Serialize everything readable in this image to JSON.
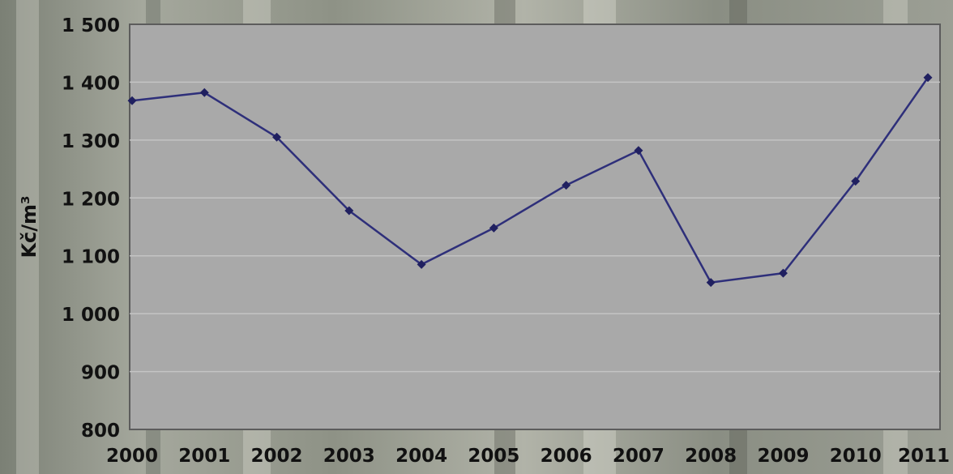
{
  "chart_data": {
    "type": "line",
    "title": "",
    "xlabel": "",
    "ylabel": "Kč/m³",
    "x": [
      "2000",
      "2001",
      "2002",
      "2003",
      "2004",
      "2005",
      "2006",
      "2007",
      "2008",
      "2009",
      "2010",
      "2011"
    ],
    "series": [
      {
        "values": [
          1368,
          1382,
          1305,
          1178,
          1085,
          1148,
          1222,
          1282,
          1054,
          1070,
          1229,
          1408
        ]
      }
    ],
    "y_ticks": [
      "800",
      "900",
      "1 000",
      "1 100",
      "1 200",
      "1 300",
      "1 400",
      "1 500"
    ],
    "ylim": [
      800,
      1500
    ],
    "grid": true,
    "legend": "none",
    "colors": {
      "plot_background": "#a9a9a9",
      "line": "#2e2f7a",
      "marker": "#202060",
      "gridline": "#c4c4c4",
      "frame": "#5c5c5c"
    }
  }
}
